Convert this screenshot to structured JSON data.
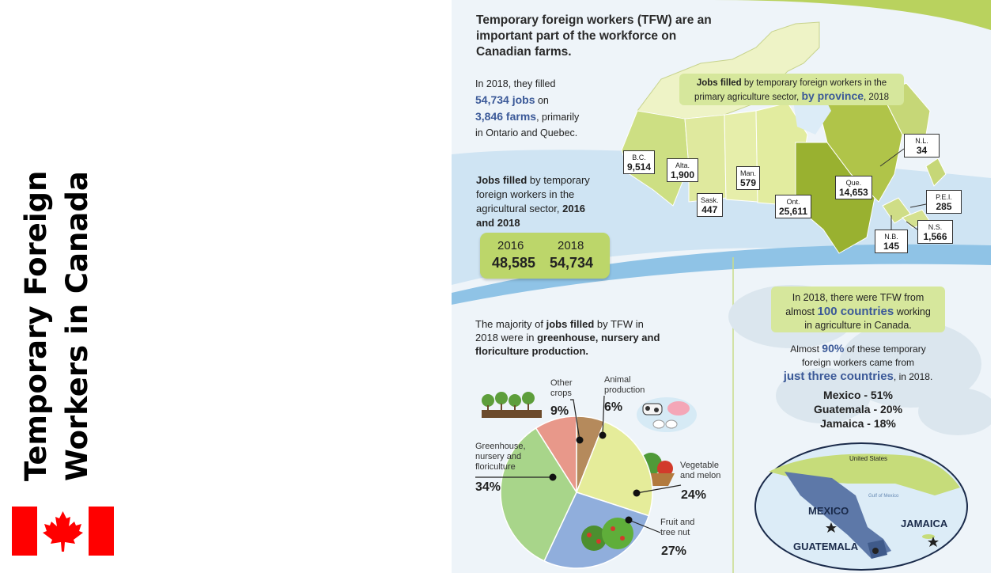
{
  "slide": {
    "title": "Temporary Foreign Workers in Canada"
  },
  "colors": {
    "flag_red": "#ff0000",
    "light_green": "#d6e79c",
    "olive": "#99b130",
    "pie_green": "#a8d58a",
    "pie_salmon": "#e8988a",
    "pie_brown": "#b58a5c",
    "pie_yellow": "#e5ec9a",
    "pie_blue": "#90aedc"
  },
  "intro": {
    "line1": "Temporary foreign workers (TFW) are an",
    "line2": "important part of the workforce on",
    "line3": "Canadian farms."
  },
  "filled": {
    "line1": "In 2018, they filled",
    "jobs_value": "54,734 jobs",
    "jobs_suffix": " on",
    "farms_value": "3,846 farms",
    "farms_suffix": ", primarily",
    "line4": "in Ontario and Quebec."
  },
  "map_title": {
    "prefix_bold": "Jobs filled",
    "prefix_rest": " by temporary foreign workers in the",
    "line2_start": "primary agriculture sector, ",
    "line2_blue": "by province",
    "line2_end": ", 2018"
  },
  "provinces": [
    {
      "name": "B.C.",
      "value": "9,514"
    },
    {
      "name": "Alta.",
      "value": "1,900"
    },
    {
      "name": "Sask.",
      "value": "447"
    },
    {
      "name": "Man.",
      "value": "579"
    },
    {
      "name": "Ont.",
      "value": "25,611"
    },
    {
      "name": "Que.",
      "value": "14,653"
    },
    {
      "name": "N.L.",
      "value": "34"
    },
    {
      "name": "P.E.I.",
      "value": "285"
    },
    {
      "name": "N.S.",
      "value": "1,566"
    },
    {
      "name": "N.B.",
      "value": "145"
    }
  ],
  "sector": {
    "bold": "Jobs filled",
    "rest1": " by temporary",
    "line2": "foreign workers in the",
    "line3_start": "agricultural sector, ",
    "line3_bold": "2016",
    "line4_bold": "and 2018",
    "years": [
      "2016",
      "2018"
    ],
    "values": [
      "48,585",
      "54,734"
    ]
  },
  "majority": {
    "line1_start": "The majority of ",
    "line1_bold": "jobs filled",
    "line1_end": " by TFW in",
    "line2_start": "2018 were in ",
    "line2_bold": "greenhouse, nursery and",
    "line3_bold": "floriculture production."
  },
  "chart_data": {
    "type": "pie",
    "categories": [
      "Greenhouse, nursery and floriculture",
      "Other crops",
      "Animal production",
      "Vegetable and melon",
      "Fruit and tree nut"
    ],
    "values": [
      34,
      9,
      6,
      24,
      27
    ],
    "labels": {
      "other": [
        "Other",
        "crops"
      ],
      "animal": [
        "Animal",
        "production"
      ],
      "vegetable": [
        "Vegetable",
        "and melon"
      ],
      "fruit": [
        "Fruit and",
        "tree nut"
      ],
      "greenhouse": [
        "Greenhouse,",
        "nursery and",
        "floriculture"
      ]
    },
    "percents": [
      "34%",
      "9%",
      "6%",
      "24%",
      "27%"
    ]
  },
  "countries": {
    "line1": "In 2018, there were TFW from",
    "line2_start": "almost ",
    "line2_blue": "100 countries",
    "line2_end": " working",
    "line3": "in agriculture in Canada.",
    "p2_line1_start": "Almost ",
    "p2_line1_blue": "90%",
    "p2_line1_end": " of these temporary",
    "p2_line2": "foreign workers came from",
    "p2_line3_blue": "just three countries",
    "p2_line3_end": ", in 2018.",
    "shares": [
      "Mexico - 51%",
      "Guatemala - 20%",
      "Jamaica - 18%"
    ]
  },
  "minimap": {
    "us": "United States",
    "gulf": "Gulf of Mexico",
    "mexico": "MEXICO",
    "guatemala": "GUATEMALA",
    "jamaica": "JAMAICA"
  }
}
